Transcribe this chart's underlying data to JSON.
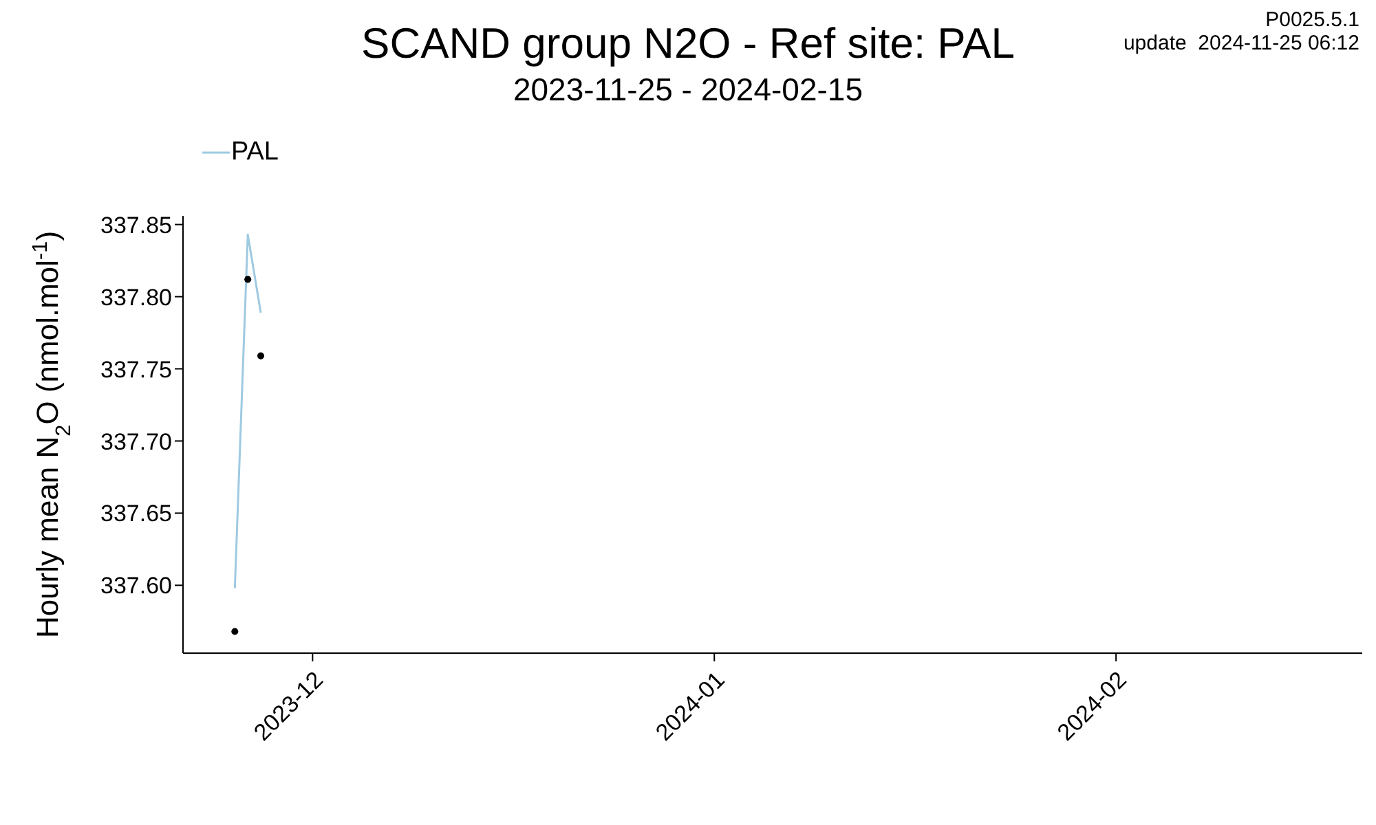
{
  "chart_data": {
    "type": "line",
    "title": "SCAND group N2O - Ref site: PAL",
    "subtitle": "2023-11-25 - 2024-02-15",
    "ylabel": "Hourly mean  N$_{2}$O (nmol.mol$^{-1}$)",
    "annotations": [
      "P0025.5.1",
      "update  2024-11-25 06:12"
    ],
    "x": [
      "2023-11-25",
      "2023-11-26",
      "2023-11-27"
    ],
    "series": [
      {
        "name": "PAL",
        "color": "#9ecae1",
        "values": [
          337.598,
          337.843,
          337.789
        ]
      },
      {
        "type": "scatter",
        "color": "#000000",
        "values": [
          337.568,
          337.812,
          337.759
        ]
      }
    ],
    "xlim": [
      "2023-11-21",
      "2024-02-20"
    ],
    "xticks": [
      "2023-12",
      "2024-01",
      "2024-02"
    ],
    "ylim": [
      337.553,
      337.856
    ],
    "yticks": [
      {
        "value": 337.6,
        "label": "337.60"
      },
      337.65,
      {
        "value": 337.7,
        "label": "337.70"
      },
      337.75,
      {
        "value": 337.8,
        "label": "337.80"
      },
      337.85
    ],
    "grid": false,
    "legend": "top left",
    "line_style": "solid"
  }
}
